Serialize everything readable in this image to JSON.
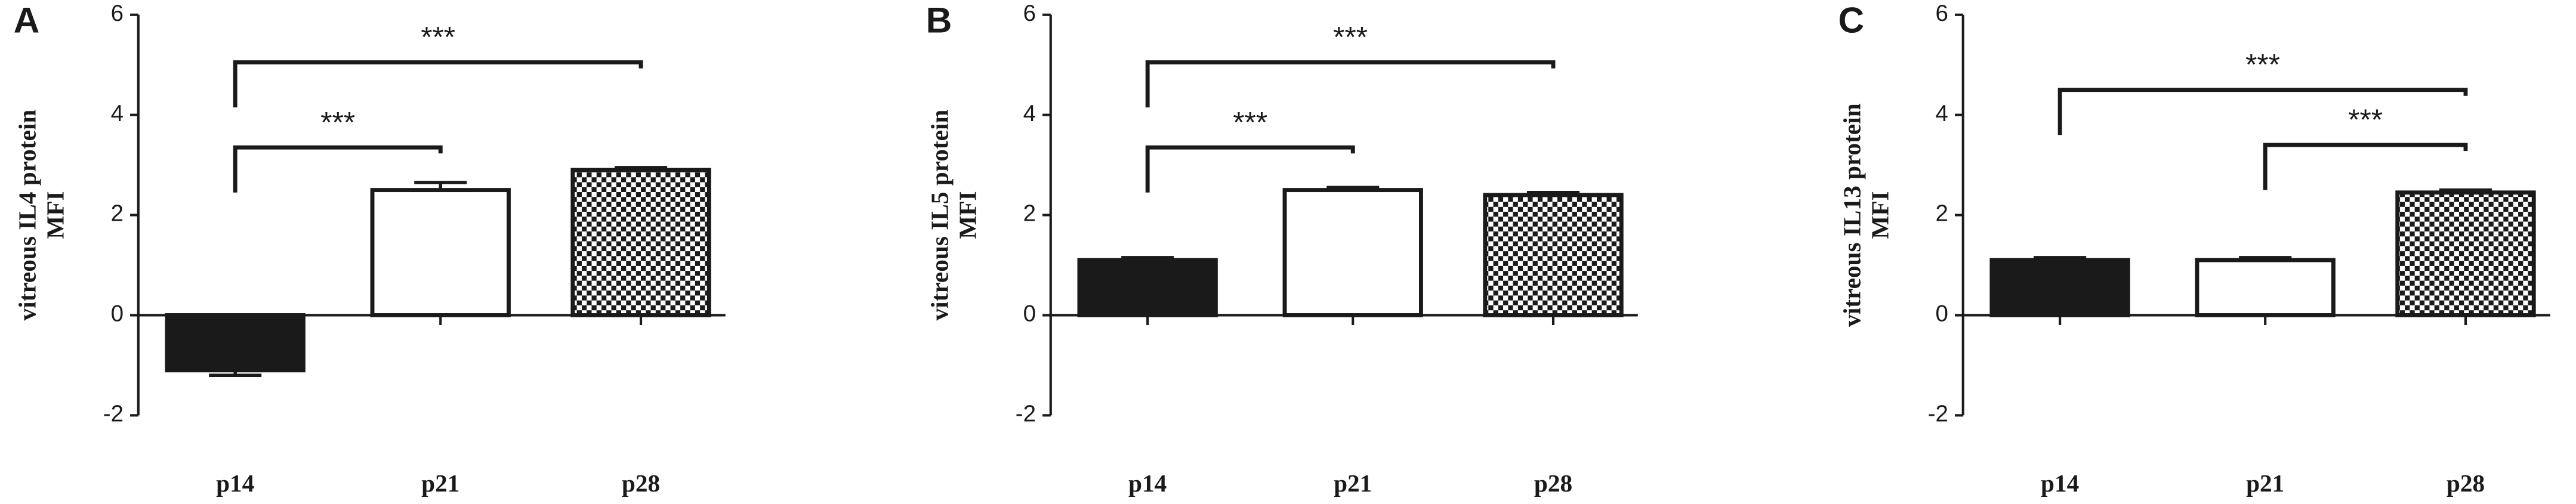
{
  "chart_data": [
    {
      "type": "bar",
      "panel": "A",
      "ylabel": [
        "vitreous IL4 protein",
        "MFI"
      ],
      "categories": [
        "p14",
        "p21",
        "p28"
      ],
      "values": [
        -1.1,
        2.5,
        2.9
      ],
      "errors": [
        0.1,
        0.15,
        0.05
      ],
      "colors": [
        "#1a1a1a",
        "#ffffff",
        "#1a1a1a"
      ],
      "patterns": [
        null,
        null,
        "checkerboard"
      ],
      "ylim": [
        -2,
        6
      ],
      "yticks": [
        -2,
        0,
        2,
        4,
        6
      ],
      "comparisons": [
        {
          "groups": [
            "p14",
            "p28"
          ],
          "y": 5.05,
          "label": "***"
        },
        {
          "groups": [
            "p14",
            "p21"
          ],
          "y": 3.35,
          "label": "***"
        }
      ]
    },
    {
      "type": "bar",
      "panel": "B",
      "ylabel": [
        "vitreous IL5 protein",
        "MFI"
      ],
      "categories": [
        "p14",
        "p21",
        "p28"
      ],
      "values": [
        1.1,
        2.5,
        2.4
      ],
      "errors": [
        0.05,
        0.05,
        0.05
      ],
      "colors": [
        "#1a1a1a",
        "#ffffff",
        "#1a1a1a"
      ],
      "patterns": [
        null,
        null,
        "checkerboard"
      ],
      "ylim": [
        -2,
        6
      ],
      "yticks": [
        -2,
        0,
        2,
        4,
        6
      ],
      "comparisons": [
        {
          "groups": [
            "p14",
            "p28"
          ],
          "y": 5.05,
          "label": "***"
        },
        {
          "groups": [
            "p14",
            "p21"
          ],
          "y": 3.35,
          "label": "***"
        }
      ]
    },
    {
      "type": "bar",
      "panel": "C",
      "ylabel": [
        "vitreous IL13 protein",
        "MFI"
      ],
      "categories": [
        "p14",
        "p21",
        "p28"
      ],
      "values": [
        1.1,
        1.1,
        2.45
      ],
      "errors": [
        0.05,
        0.05,
        0.05
      ],
      "colors": [
        "#1a1a1a",
        "#ffffff",
        "#1a1a1a"
      ],
      "patterns": [
        null,
        null,
        "checkerboard"
      ],
      "ylim": [
        -2,
        6
      ],
      "yticks": [
        -2,
        0,
        2,
        4,
        6
      ],
      "comparisons": [
        {
          "groups": [
            "p14",
            "p28"
          ],
          "y": 4.5,
          "label": "***"
        },
        {
          "groups": [
            "p21",
            "p28"
          ],
          "y": 3.4,
          "label": "***"
        }
      ]
    }
  ]
}
